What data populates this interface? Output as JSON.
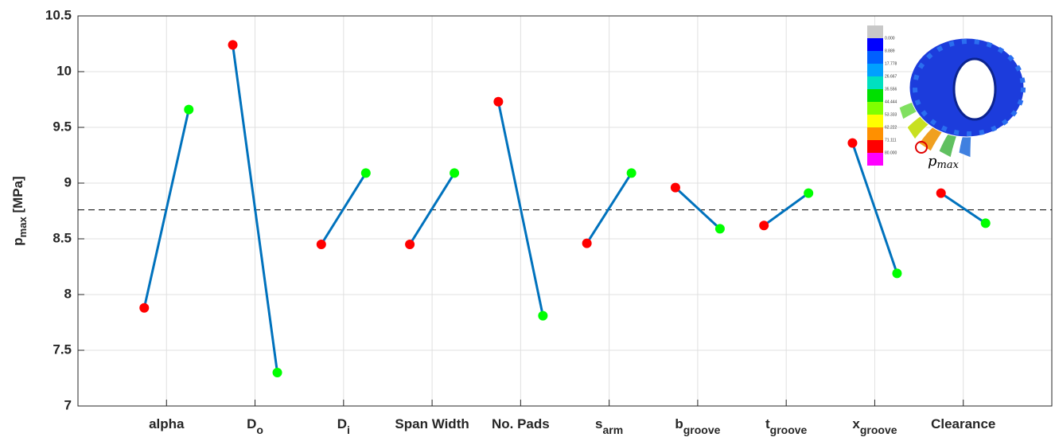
{
  "chart_data": {
    "type": "main_effects",
    "categories": [
      "alpha",
      "D",
      "D",
      "Span Width",
      "No. Pads",
      "s",
      "b",
      "t",
      "x",
      "Clearance"
    ],
    "category_subscripts": [
      null,
      "o",
      "i",
      null,
      null,
      "arm",
      "groove",
      "groove",
      "groove",
      null
    ],
    "series": [
      {
        "color": "#ff0000",
        "values": [
          7.88,
          10.24,
          8.45,
          8.45,
          9.73,
          8.46,
          8.96,
          8.62,
          9.36,
          8.91
        ]
      },
      {
        "color": "#00ff00",
        "values": [
          9.66,
          7.3,
          9.09,
          9.09,
          7.81,
          9.09,
          8.59,
          8.91,
          8.19,
          8.64
        ]
      }
    ],
    "line_color": "#0072bd",
    "mean_line": 8.76,
    "ylabel": {
      "main": "p",
      "sub": "max",
      "rest": " [MPa]"
    },
    "ylim": [
      7,
      10.5
    ],
    "yticks": [
      7,
      7.5,
      8,
      8.5,
      9,
      9.5,
      10,
      10.5
    ],
    "grid": true,
    "inset": {
      "colorbar_labels": [
        "0.000",
        "8.889",
        "17.778",
        "26.667",
        "35.556",
        "44.444",
        "53.333",
        "62.222",
        "71.111",
        "80.000"
      ],
      "annotation": {
        "main": "p",
        "sub": "max"
      }
    }
  }
}
